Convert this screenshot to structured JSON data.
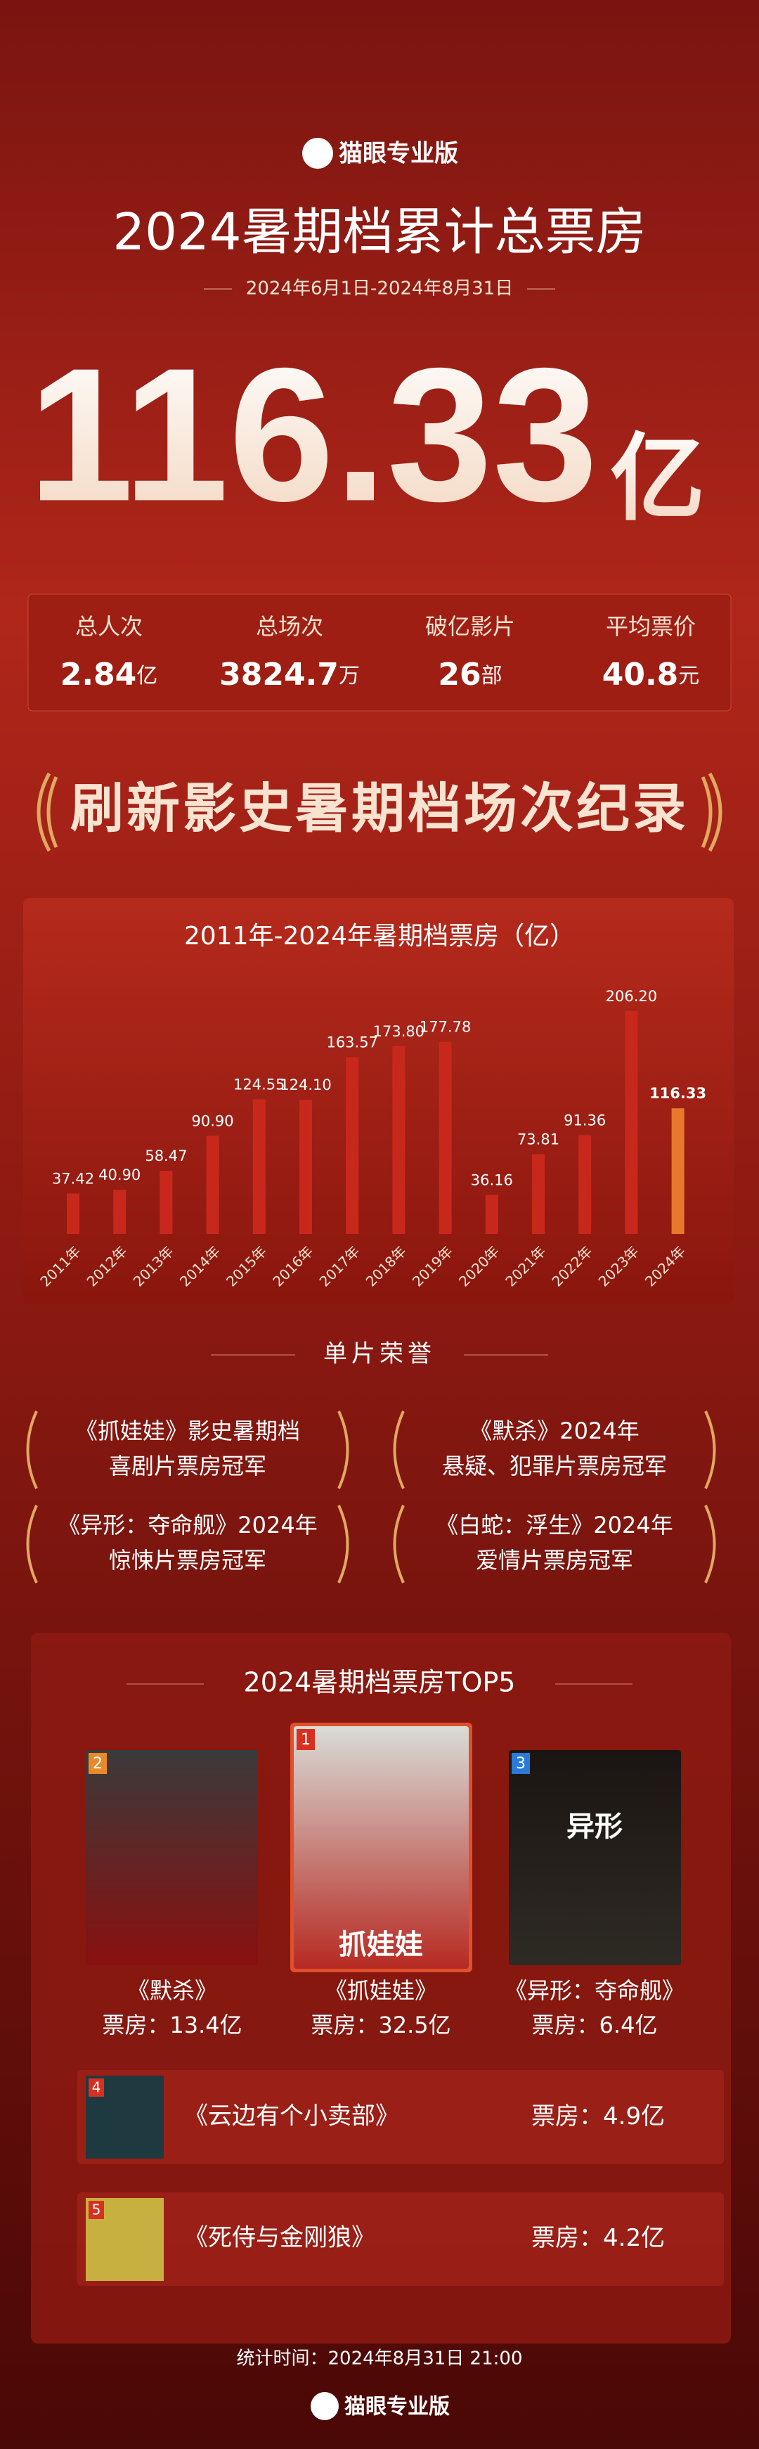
{
  "header": {
    "brand": "猫眼专业版",
    "title": "2024暑期档累计总票房",
    "date": "2024年6月1日-2024年8月31日",
    "total": "116.33",
    "total_unit": "亿"
  },
  "stats": [
    {
      "label": "总人次",
      "value": "2.84",
      "unit": "亿"
    },
    {
      "label": "总场次",
      "value": "3824.7",
      "unit": "万"
    },
    {
      "label": "破亿影片",
      "value": "26",
      "unit": "部"
    },
    {
      "label": "平均票价",
      "value": "40.8",
      "unit": "元"
    }
  ],
  "banner": "刷新影史暑期档场次纪录",
  "chart_data": {
    "type": "bar",
    "title": "2011年-2024年暑期档票房（亿）",
    "categories": [
      "2011年",
      "2012年",
      "2013年",
      "2014年",
      "2015年",
      "2016年",
      "2017年",
      "2018年",
      "2019年",
      "2020年",
      "2021年",
      "2022年",
      "2023年",
      "2024年"
    ],
    "values": [
      37.42,
      40.9,
      58.47,
      90.9,
      124.55,
      124.1,
      163.57,
      173.8,
      177.78,
      36.16,
      73.81,
      91.36,
      206.2,
      116.33
    ],
    "value_labels": [
      "37.42",
      "40.90",
      "58.47",
      "90.90",
      "124.55",
      "124.10",
      "163.57",
      "173.80",
      "177.78",
      "36.16",
      "73.81",
      "91.36",
      "206.20",
      "116.33"
    ],
    "colors": [
      "#c8281c",
      "#c8281c",
      "#c8281c",
      "#c8281c",
      "#c8281c",
      "#c8281c",
      "#c8281c",
      "#c8281c",
      "#c8281c",
      "#c8281c",
      "#c8281c",
      "#c8281c",
      "#c8281c",
      "#e8782c"
    ]
  },
  "honors": {
    "title": "单片荣誉",
    "items": [
      [
        "《抓娃娃》影史暑期档",
        "喜剧片票房冠军"
      ],
      [
        "《默杀》2024年",
        "悬疑、犯罪片票房冠军"
      ],
      [
        "《异形：夺命舰》2024年",
        "惊悚片票房冠军"
      ],
      [
        "《白蛇：浮生》2024年",
        "爱情片票房冠军"
      ]
    ]
  },
  "top5": {
    "title": "2024暑期档票房TOP5",
    "items": [
      {
        "rank": "1",
        "name": "《抓娃娃》",
        "box_label": "票房：",
        "box": "32.5亿",
        "poster": "抓娃娃"
      },
      {
        "rank": "2",
        "name": "《默杀》",
        "box_label": "票房：",
        "box": "13.4亿"
      },
      {
        "rank": "3",
        "name": "《异形：夺命舰》",
        "box_label": "票房：",
        "box": "6.4亿",
        "poster": "异形"
      },
      {
        "rank": "4",
        "name": "《云边有个小卖部》",
        "box_label": "票房：",
        "box": "4.9亿"
      },
      {
        "rank": "5",
        "name": "《死侍与金刚狼》",
        "box_label": "票房：",
        "box": "4.2亿"
      }
    ]
  },
  "footer": {
    "time": "统计时间：2024年8月31日 21:00",
    "brand": "猫眼专业版"
  }
}
